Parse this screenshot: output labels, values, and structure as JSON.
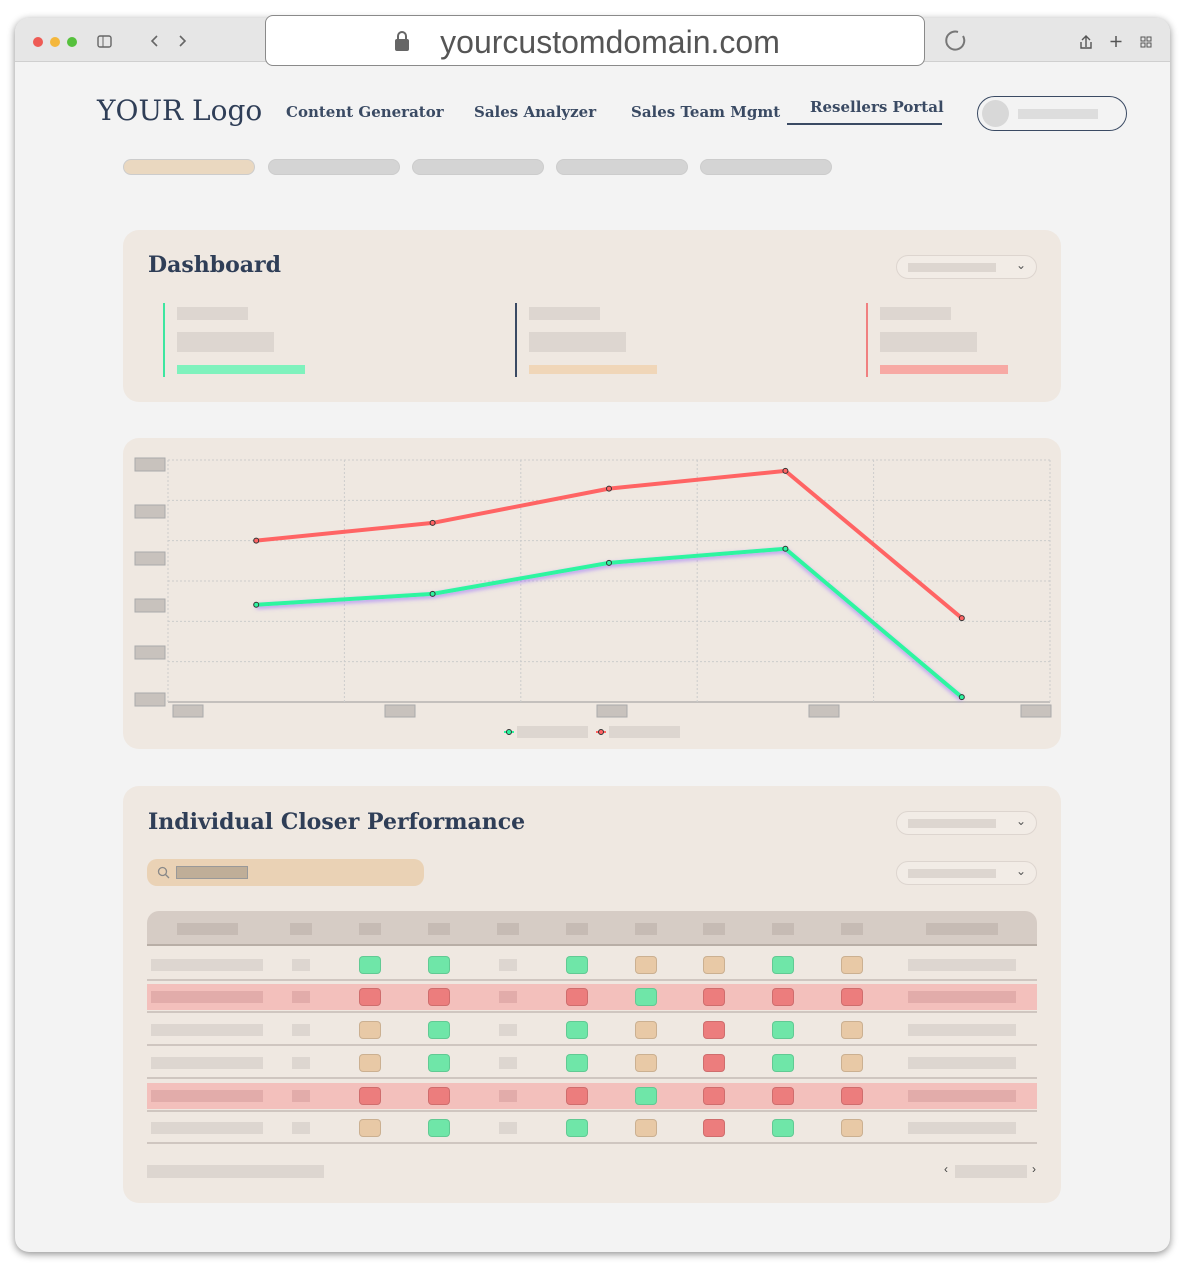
{
  "browser": {
    "url": "yourcustomdomain.com"
  },
  "header": {
    "logo": "YOUR Logo",
    "nav": [
      "Content Generator",
      "Sales Analyzer",
      "Sales Team Mgmt",
      "Resellers Portal"
    ]
  },
  "dashboard": {
    "title": "Dashboard"
  },
  "chart_data": {
    "type": "line",
    "categories": [
      null,
      null,
      null,
      null,
      null
    ],
    "series": [
      {
        "color": "#2ef5a0",
        "values": [
          2.41,
          2.68,
          3.45,
          3.8,
          0.12
        ]
      },
      {
        "color": "#ff6464",
        "values": [
          4.0,
          4.44,
          5.29,
          5.73,
          2.08
        ]
      }
    ],
    "ylim": [
      0,
      6
    ],
    "yticks": [
      0,
      1,
      2,
      3,
      4,
      5,
      6
    ],
    "grid": true
  },
  "performance": {
    "title": "Individual Closer Performance"
  }
}
